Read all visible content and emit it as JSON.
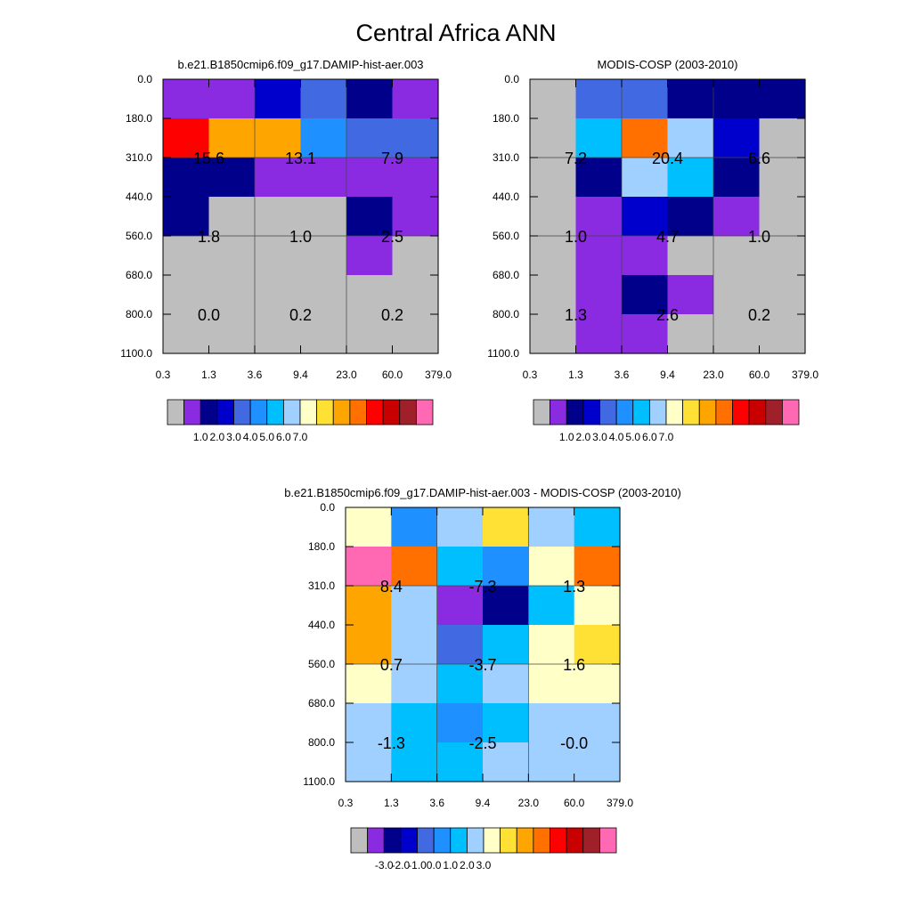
{
  "page_title": "Central Africa ANN",
  "palettes": {
    "abs": [
      "#bebebe",
      "#8a2be2",
      "#00008b",
      "#0000cd",
      "#4169e1",
      "#1e90ff",
      "#00bfff",
      "#a0d0ff",
      "#ffffc8",
      "#ffe135",
      "#ffa500",
      "#ff7000",
      "#ff0000",
      "#c80000",
      "#a0202a",
      "#ff69b4"
    ],
    "diff": [
      "#bebebe",
      "#8a2be2",
      "#00008b",
      "#0000cd",
      "#4169e1",
      "#1e90ff",
      "#00bfff",
      "#a0d0ff",
      "#ffffc8",
      "#ffe135",
      "#ffa500",
      "#ff7000",
      "#ff0000",
      "#c80000",
      "#a0202a",
      "#ff69b4"
    ]
  },
  "chart_data": [
    {
      "type": "heatmap",
      "title": "b.e21.B1850cmip6.f09_g17.DAMIP-hist-aer.003",
      "x_ticks": [
        "0.3",
        "1.3",
        "3.6",
        "9.4",
        "23.0",
        "60.0",
        "379.0"
      ],
      "y_ticks": [
        "0.0",
        "180.0",
        "310.0",
        "440.0",
        "560.0",
        "680.0",
        "800.0",
        "1100.0"
      ],
      "palette": "abs",
      "cells": [
        [
          1,
          1,
          3,
          4,
          2,
          1
        ],
        [
          12,
          10,
          10,
          5,
          4,
          4
        ],
        [
          2,
          2,
          1,
          1,
          1,
          1
        ],
        [
          2,
          0,
          0,
          0,
          2,
          1
        ],
        [
          0,
          0,
          0,
          0,
          1,
          0
        ],
        [
          0,
          0,
          0,
          0,
          0,
          0
        ],
        [
          0,
          0,
          0,
          0,
          0,
          0
        ]
      ],
      "labels": [
        {
          "row": 1,
          "col": 1,
          "text": "15.6"
        },
        {
          "row": 1,
          "col": 3,
          "text": "13.1"
        },
        {
          "row": 1,
          "col": 5,
          "text": "7.9"
        },
        {
          "row": 3,
          "col": 1,
          "text": "1.8"
        },
        {
          "row": 3,
          "col": 3,
          "text": "1.0"
        },
        {
          "row": 3,
          "col": 5,
          "text": "2.5"
        },
        {
          "row": 5,
          "col": 1,
          "text": "0.0"
        },
        {
          "row": 5,
          "col": 3,
          "text": "0.2"
        },
        {
          "row": 5,
          "col": 5,
          "text": "0.2"
        }
      ],
      "colorbar_labels": [
        "1.0",
        "2.0",
        "3.0",
        "4.0",
        "5.0",
        "6.0",
        "7.0"
      ]
    },
    {
      "type": "heatmap",
      "title": "MODIS-COSP (2003-2010)",
      "x_ticks": [
        "0.3",
        "1.3",
        "3.6",
        "9.4",
        "23.0",
        "60.0",
        "379.0"
      ],
      "y_ticks": [
        "0.0",
        "180.0",
        "310.0",
        "440.0",
        "560.0",
        "680.0",
        "800.0",
        "1100.0"
      ],
      "palette": "abs",
      "cells": [
        [
          0,
          4,
          4,
          2,
          2,
          2
        ],
        [
          0,
          6,
          11,
          7,
          3,
          0
        ],
        [
          0,
          2,
          7,
          6,
          2,
          0
        ],
        [
          0,
          1,
          3,
          2,
          1,
          0
        ],
        [
          0,
          1,
          1,
          0,
          0,
          0
        ],
        [
          0,
          1,
          2,
          1,
          0,
          0
        ],
        [
          0,
          1,
          1,
          0,
          0,
          0
        ]
      ],
      "labels": [
        {
          "row": 1,
          "col": 1,
          "text": "7.2"
        },
        {
          "row": 1,
          "col": 3,
          "text": "20.4"
        },
        {
          "row": 1,
          "col": 5,
          "text": "6.6"
        },
        {
          "row": 3,
          "col": 1,
          "text": "1.0"
        },
        {
          "row": 3,
          "col": 3,
          "text": "4.7"
        },
        {
          "row": 3,
          "col": 5,
          "text": "1.0"
        },
        {
          "row": 5,
          "col": 1,
          "text": "1.3"
        },
        {
          "row": 5,
          "col": 3,
          "text": "2.6"
        },
        {
          "row": 5,
          "col": 5,
          "text": "0.2"
        }
      ],
      "colorbar_labels": [
        "1.0",
        "2.0",
        "3.0",
        "4.0",
        "5.0",
        "6.0",
        "7.0"
      ]
    },
    {
      "type": "heatmap",
      "title": "b.e21.B1850cmip6.f09_g17.DAMIP-hist-aer.003 - MODIS-COSP (2003-2010)",
      "x_ticks": [
        "0.3",
        "1.3",
        "3.6",
        "9.4",
        "23.0",
        "60.0",
        "379.0"
      ],
      "y_ticks": [
        "0.0",
        "180.0",
        "310.0",
        "440.0",
        "560.0",
        "680.0",
        "800.0",
        "1100.0"
      ],
      "palette": "diff",
      "cells": [
        [
          8,
          5,
          7,
          9,
          7,
          6
        ],
        [
          15,
          11,
          6,
          5,
          8,
          11
        ],
        [
          10,
          7,
          1,
          2,
          6,
          8
        ],
        [
          10,
          7,
          4,
          6,
          8,
          9
        ],
        [
          8,
          7,
          6,
          7,
          8,
          8
        ],
        [
          7,
          6,
          5,
          6,
          7,
          7
        ],
        [
          7,
          6,
          6,
          7,
          7,
          7
        ]
      ],
      "labels": [
        {
          "row": 1,
          "col": 1,
          "text": "8.4"
        },
        {
          "row": 1,
          "col": 3,
          "text": "-7.3"
        },
        {
          "row": 1,
          "col": 5,
          "text": "1.3"
        },
        {
          "row": 3,
          "col": 1,
          "text": "0.7"
        },
        {
          "row": 3,
          "col": 3,
          "text": "-3.7"
        },
        {
          "row": 3,
          "col": 5,
          "text": "1.6"
        },
        {
          "row": 5,
          "col": 1,
          "text": "-1.3"
        },
        {
          "row": 5,
          "col": 3,
          "text": "-2.5"
        },
        {
          "row": 5,
          "col": 5,
          "text": "-0.0"
        }
      ],
      "colorbar_labels": [
        "-3.0",
        "-2.0",
        "-1.0",
        "0.0",
        "1.0",
        "2.0",
        "3.0"
      ]
    }
  ]
}
